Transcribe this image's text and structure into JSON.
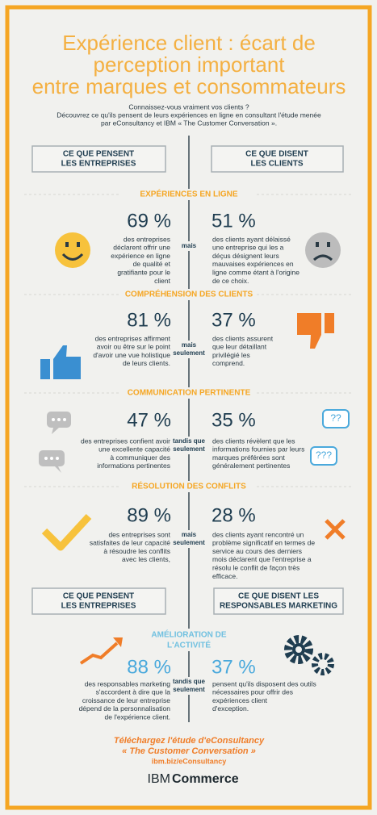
{
  "header": {
    "title": [
      "Expérience client : écart de",
      "perception important",
      "entre marques et consommateurs"
    ],
    "intro": [
      "Connaissez-vous vraiment vos clients ?",
      "Découvrez ce qu'ils pensent de leurs expériences en ligne en consultant l'étude menée",
      "par eConsultancy et IBM « The Customer Conversation »."
    ]
  },
  "columns": {
    "left": [
      "CE QUE PENSENT",
      "LES ENTREPRISES"
    ],
    "right": [
      "CE QUE DISENT",
      "LES CLIENTS"
    ]
  },
  "columns2": {
    "left": [
      "CE QUE PENSENT",
      "LES ENTREPRISES"
    ],
    "right": [
      "CE QUE DISENT LES",
      "RESPONSABLES MARKETING"
    ]
  },
  "sections": [
    {
      "title": [
        "EXPÉRIENCES EN LIGNE"
      ],
      "left_pct": "69 %",
      "left_text": [
        "des entreprises",
        "déclarent offrir une",
        "expérience en ligne",
        "de qualité et",
        "gratifiante pour le",
        "client"
      ],
      "connector": [
        "mais"
      ],
      "right_pct": "51 %",
      "right_text": [
        "des clients ayant délaissé",
        "une entreprise qui les a",
        "déçus désignent leurs",
        "mauvaises expériences en",
        "ligne comme étant à l'origine",
        "de ce choix."
      ]
    },
    {
      "title": [
        "COMPRÉHENSION DES CLIENTS"
      ],
      "left_pct": "81 %",
      "left_text": [
        "des entreprises affirment",
        "avoir ou être sur le point",
        "d'avoir une vue holistique",
        "de leurs clients."
      ],
      "connector": [
        "mais",
        "seulement"
      ],
      "right_pct": "37 %",
      "right_text": [
        "des clients assurent",
        "que leur détaillant",
        "privilégié les",
        "comprend."
      ]
    },
    {
      "title": [
        "COMMUNICATION PERTINENTE"
      ],
      "left_pct": "47 %",
      "left_text": [
        "des entreprises confient avoir",
        "une excellente capacité",
        "à communiquer des",
        "informations pertinentes"
      ],
      "connector": [
        "tandis que",
        "seulement"
      ],
      "right_pct": "35 %",
      "right_text": [
        "des clients révèlent que les",
        "informations fournies par leurs",
        "marques préférées sont",
        "généralement pertinentes"
      ]
    },
    {
      "title": [
        "RÉSOLUTION DES CONFLITS"
      ],
      "left_pct": "89 %",
      "left_text": [
        "des entreprises sont",
        "satisfaites de leur capacité",
        "à résoudre les conflits",
        "avec les clients,"
      ],
      "connector": [
        "mais",
        "seulement"
      ],
      "right_pct": "28 %",
      "right_text": [
        "des clients ayant rencontré un",
        "problème significatif en termes de",
        "service au cours des derniers",
        "mois déclarent que l'entreprise a",
        "résolu le conflit de façon très",
        "efficace."
      ]
    },
    {
      "title": [
        "AMÉLIORATION DE",
        "L'ACTIVITÉ"
      ],
      "left_pct": "88 %",
      "left_text": [
        "des responsables marketing",
        "s'accordent à dire que la",
        "croissance de leur entreprise",
        "dépend de la personnalisation",
        "de l'expérience client."
      ],
      "connector": [
        "tandis que",
        "seulement"
      ],
      "right_pct": "37 %",
      "right_text": [
        "pensent qu'ils disposent des outils",
        "nécessaires pour offrir des",
        "expériences client",
        "d'exception."
      ]
    }
  ],
  "icons": {
    "question1": "??",
    "question2": "???"
  },
  "footer": {
    "download": [
      "Téléchargez l'étude d'eConsultancy",
      "« The Customer Conversation »"
    ],
    "url": "ibm.biz/eConsultancy",
    "brand": "IBM",
    "product": "Commerce"
  }
}
